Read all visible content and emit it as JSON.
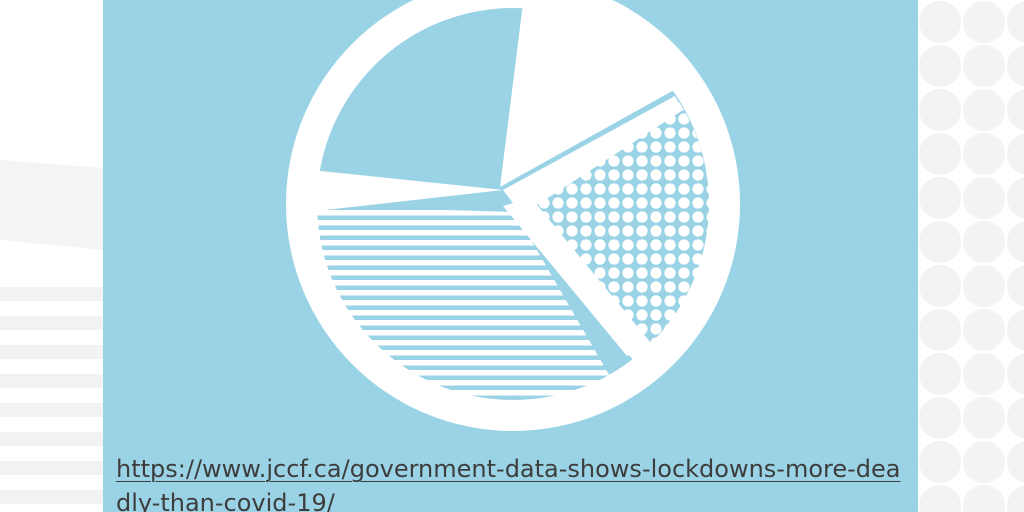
{
  "colors": {
    "card_background": "#9bd3e6",
    "pie_fill": "#ffffff",
    "link_text": "#3d3d3d",
    "page_background": "#ffffff",
    "decor": "#f2f2f2"
  },
  "icons": {
    "illustration": "pie-chart-icon"
  },
  "article": {
    "link_text": "https://www.jccf.ca/government-data-shows-lockdowns-more-deadly-than-covid-19/"
  }
}
